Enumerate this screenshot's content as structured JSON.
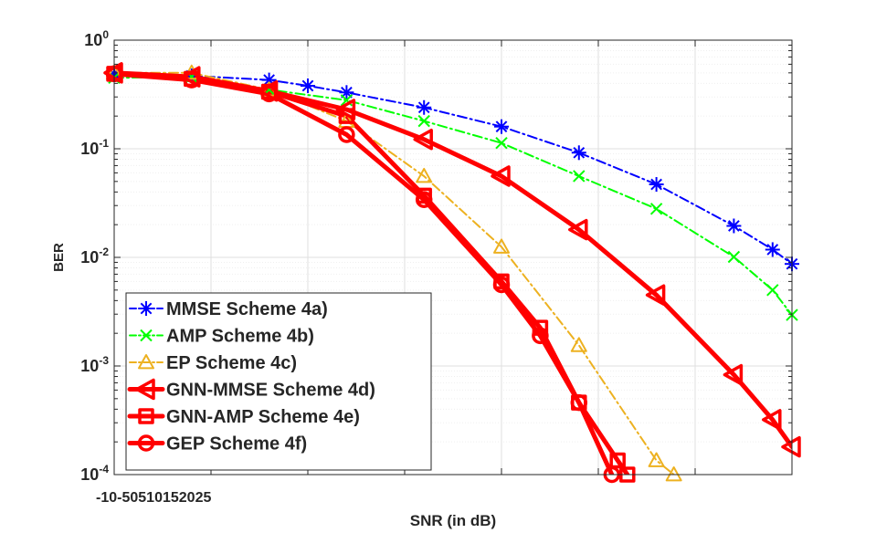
{
  "chart_data": {
    "type": "line",
    "title": "",
    "xlabel": "SNR (in dB)",
    "ylabel": "BER",
    "x_tick_labels": [
      "-10",
      "-5",
      "0",
      "5",
      "10",
      "15",
      "20",
      "25"
    ],
    "y_tick_labels": [
      {
        "base": "10",
        "exp": "0"
      },
      {
        "base": "10",
        "exp": "-1"
      },
      {
        "base": "10",
        "exp": "-2"
      },
      {
        "base": "10",
        "exp": "-3"
      },
      {
        "base": "10",
        "exp": "-4"
      }
    ],
    "xlim": [
      -10,
      25
    ],
    "ylim": [
      0.0001,
      1
    ],
    "yscale": "log",
    "grid": true,
    "legend_position": "bottom-left",
    "series": [
      {
        "name": "MMSE Scheme 4a)",
        "color": "#0000ff",
        "dash": "dashdot",
        "marker": "asterisk",
        "width": 2,
        "x": [
          -10,
          -6,
          -2,
          0,
          2,
          6,
          10,
          14,
          18,
          22,
          24,
          25
        ],
        "y": [
          0.49,
          0.47,
          0.43,
          0.38,
          0.33,
          0.24,
          0.16,
          0.092,
          0.047,
          0.0195,
          0.0118,
          0.0087
        ]
      },
      {
        "name": "AMP Scheme 4b)",
        "color": "#00ff00",
        "dash": "dashdot",
        "marker": "x",
        "width": 2,
        "x": [
          -10,
          -6,
          -2,
          2,
          6,
          10,
          14,
          18,
          22,
          24,
          25
        ],
        "y": [
          0.45,
          0.46,
          0.35,
          0.28,
          0.18,
          0.113,
          0.056,
          0.028,
          0.0101,
          0.005,
          0.00295
        ]
      },
      {
        "name": "EP Scheme 4c)",
        "color": "#edb120",
        "dash": "dashdot",
        "marker": "triangle-up",
        "width": 2,
        "x": [
          -10,
          -6,
          -2,
          2,
          6,
          10,
          14,
          18,
          18.9
        ],
        "y": [
          0.5,
          0.5,
          0.35,
          0.18,
          0.056,
          0.0125,
          0.00155,
          0.000135,
          0.0001
        ]
      },
      {
        "name": "GNN-MMSE Scheme 4d)",
        "color": "#ff0000",
        "dash": "solid",
        "marker": "triangle-left",
        "width": 5,
        "x": [
          -10,
          -6,
          -2,
          2,
          6,
          10,
          14,
          18,
          22,
          24,
          25
        ],
        "y": [
          0.5,
          0.46,
          0.34,
          0.23,
          0.122,
          0.056,
          0.018,
          0.0045,
          0.00083,
          0.00032,
          0.00018
        ]
      },
      {
        "name": "GNN-AMP Scheme 4e)",
        "color": "#ff0000",
        "dash": "solid",
        "marker": "square",
        "width": 5,
        "x": [
          -10,
          -6,
          -2,
          2,
          6,
          10,
          12,
          14,
          16,
          16.5
        ],
        "y": [
          0.49,
          0.44,
          0.335,
          0.2,
          0.037,
          0.006,
          0.00225,
          0.00046,
          0.000135,
          0.0001
        ]
      },
      {
        "name": "GEP Scheme 4f)",
        "color": "#ff0000",
        "dash": "solid",
        "marker": "circle",
        "width": 5,
        "x": [
          -10,
          -6,
          -2,
          2,
          6,
          10,
          12,
          14,
          15.7
        ],
        "y": [
          0.49,
          0.43,
          0.32,
          0.135,
          0.034,
          0.0056,
          0.0019,
          0.00046,
          0.0001
        ]
      }
    ]
  }
}
